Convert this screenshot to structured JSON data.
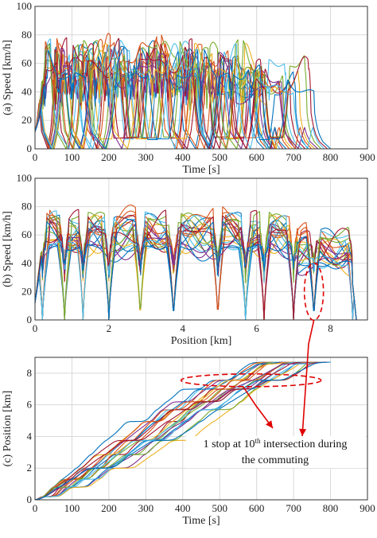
{
  "chart_data": [
    {
      "panel": "a",
      "type": "line",
      "xlabel": "Time [s]",
      "ylabel": "(a) Speed [km/h]",
      "xlim": [
        0,
        900
      ],
      "ylim": [
        0,
        100
      ],
      "xticks": [
        0,
        100,
        200,
        300,
        400,
        500,
        600,
        700,
        800,
        900
      ],
      "yticks": [
        0,
        20,
        40,
        60,
        80,
        100
      ],
      "grid": true,
      "trip_count": 22,
      "typical_speed_range": [
        40,
        70
      ],
      "peak_speed": 84,
      "trip_end_time_range": [
        480,
        800
      ]
    },
    {
      "panel": "b",
      "type": "line",
      "xlabel": "Position [km]",
      "ylabel": "(b) Speed [km/h]",
      "xlim": [
        0,
        9
      ],
      "ylim": [
        0,
        100
      ],
      "xticks": [
        0,
        2,
        4,
        6,
        8
      ],
      "yticks": [
        0,
        20,
        40,
        60,
        80,
        100
      ],
      "grid": true,
      "trip_count": 22,
      "route_length_km": 8.7,
      "intersection_positions_km": [
        0.2,
        0.8,
        1.3,
        2.0,
        2.85,
        3.75,
        4.95,
        5.7,
        6.2,
        7.0,
        7.55,
        8.6
      ],
      "peak_speed": 84
    },
    {
      "panel": "c",
      "type": "line",
      "xlabel": "Time [s]",
      "ylabel": "(c) Position [km]",
      "xlim": [
        0,
        900
      ],
      "ylim": [
        0,
        9
      ],
      "xticks": [
        0,
        100,
        200,
        300,
        400,
        500,
        600,
        700,
        800,
        900
      ],
      "yticks": [
        0,
        2,
        4,
        6,
        8
      ],
      "grid": true,
      "trip_count": 22,
      "final_position_km": 8.7,
      "finish_time_range": [
        620,
        800
      ],
      "annotation": {
        "line1": "1 stop at 10",
        "superscript": "th",
        "line1_rest": " intersection during",
        "line2": "the commuting"
      }
    }
  ],
  "series_colors": [
    "#0072bd",
    "#d95319",
    "#edb120",
    "#7e2f8e",
    "#77ac30",
    "#4dbeee",
    "#a2142f"
  ],
  "annotation_color": "#e00000"
}
